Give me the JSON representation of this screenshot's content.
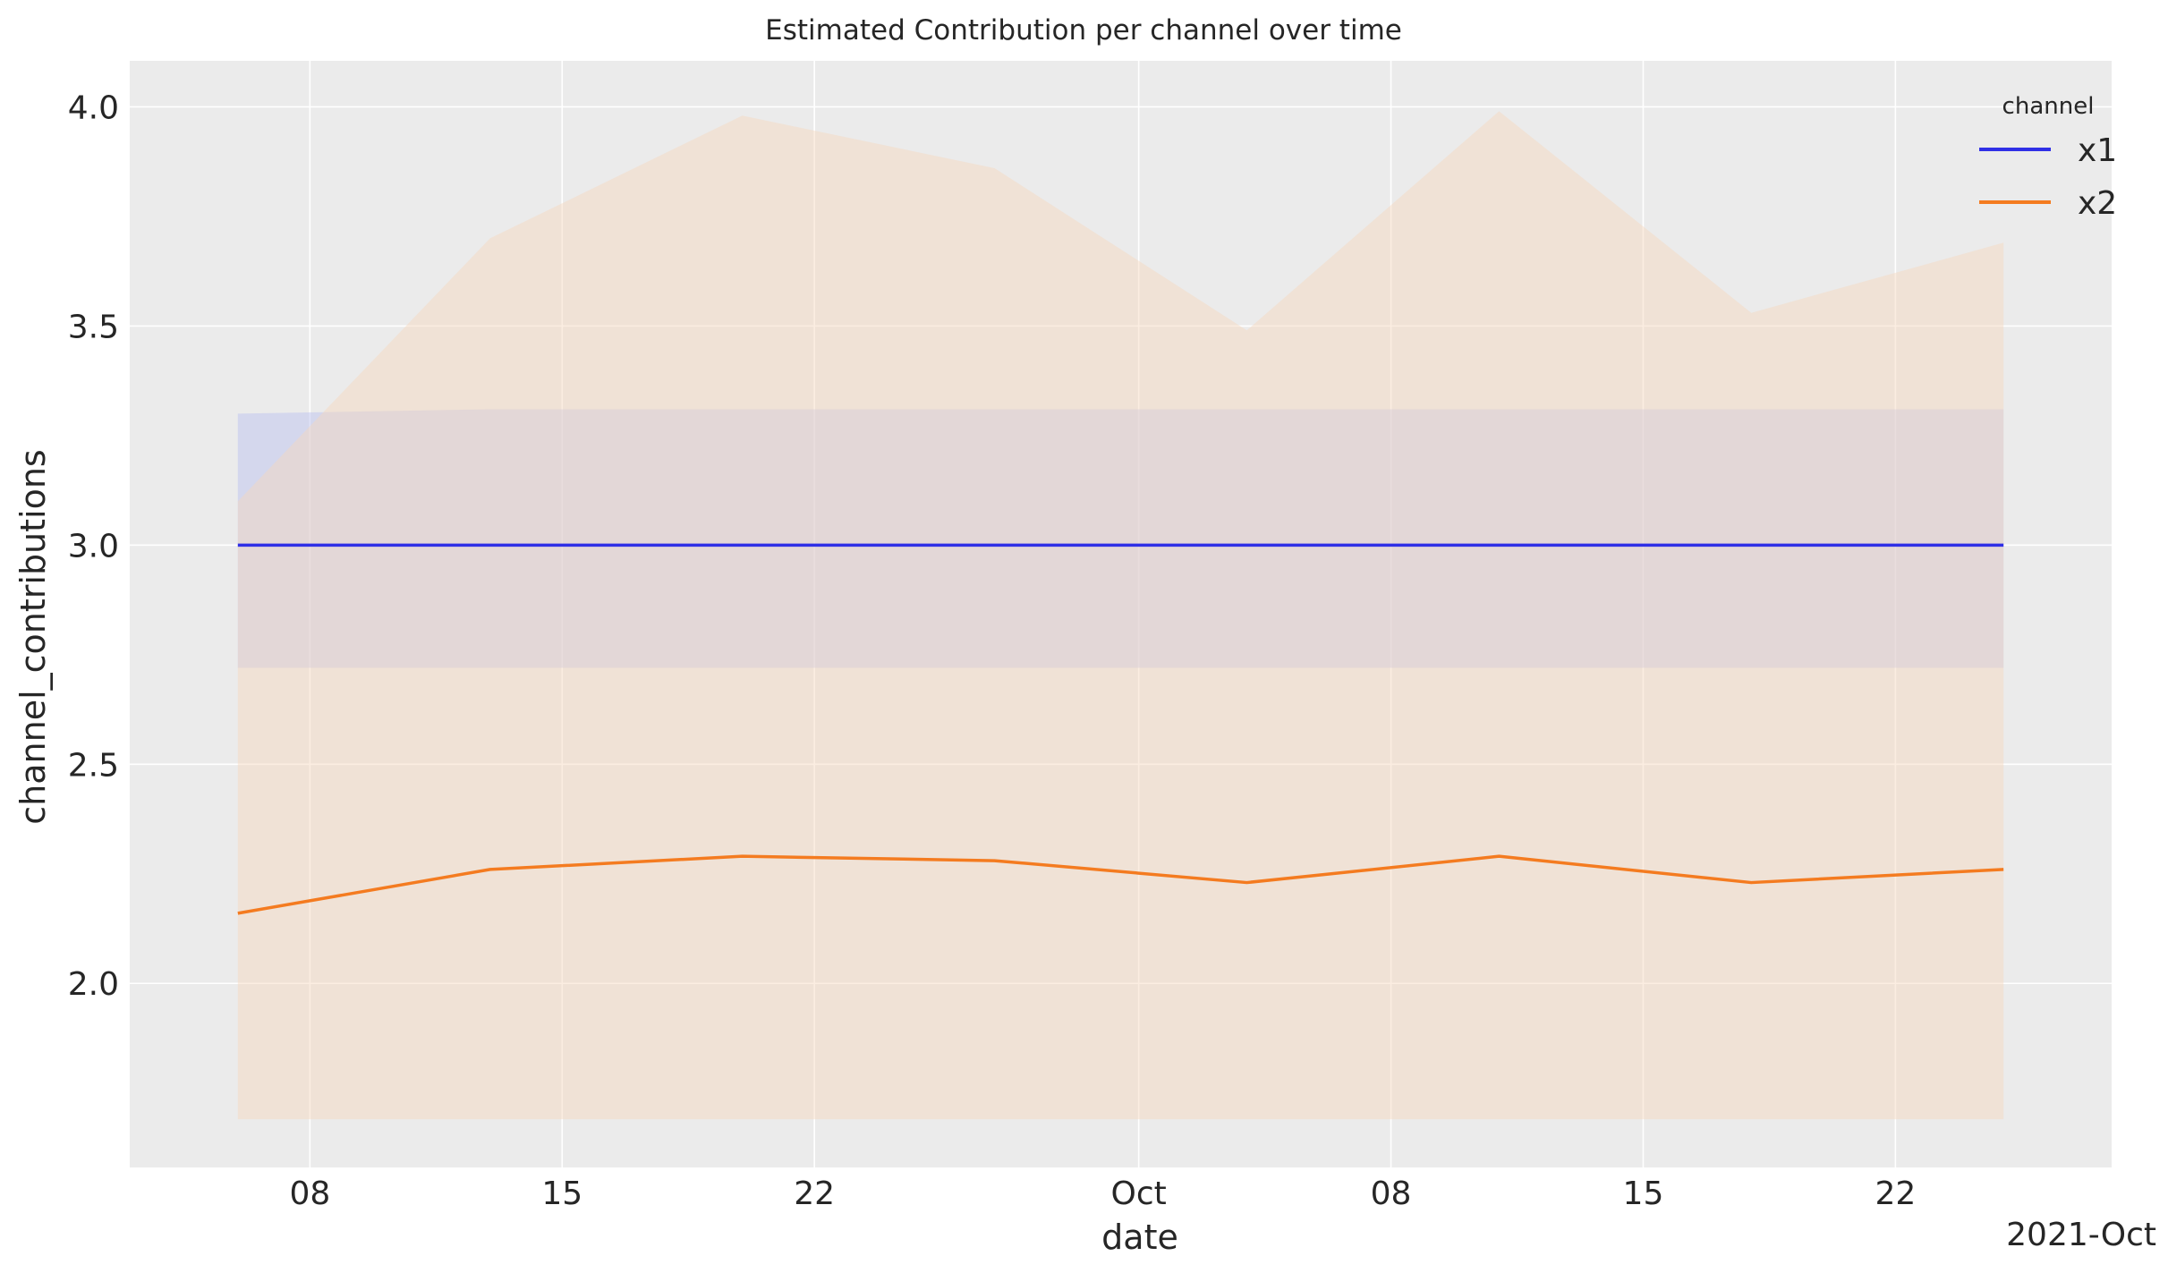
{
  "chart_data": {
    "type": "line",
    "title": "Estimated Contribution per channel over time",
    "xlabel": "date",
    "ylabel": "channel_contributions",
    "x_offset_label": "2021-Oct",
    "x_dates": [
      "2021-09-06",
      "2021-09-13",
      "2021-09-20",
      "2021-09-27",
      "2021-10-04",
      "2021-10-11",
      "2021-10-18",
      "2021-10-25"
    ],
    "x_ticks": [
      {
        "date": "2021-09-08",
        "label": "08"
      },
      {
        "date": "2021-09-15",
        "label": "15"
      },
      {
        "date": "2021-09-22",
        "label": "22"
      },
      {
        "date": "2021-10-01",
        "label": "Oct"
      },
      {
        "date": "2021-10-08",
        "label": "08"
      },
      {
        "date": "2021-10-15",
        "label": "15"
      },
      {
        "date": "2021-10-22",
        "label": "22"
      }
    ],
    "xlim": [
      "2021-09-03",
      "2021-10-28"
    ],
    "y_ticks": [
      {
        "value": 2.0,
        "label": "2.0"
      },
      {
        "value": 2.5,
        "label": "2.5"
      },
      {
        "value": 3.0,
        "label": "3.0"
      },
      {
        "value": 3.5,
        "label": "3.5"
      },
      {
        "value": 4.0,
        "label": "4.0"
      }
    ],
    "ylim": [
      1.58,
      4.105
    ],
    "grid": true,
    "legend": {
      "title": "channel",
      "placement": "top-right"
    },
    "series": [
      {
        "name": "x1",
        "color": "#2f2fe6",
        "band_color": "#b8bff0",
        "values": [
          3.0,
          3.0,
          3.0,
          3.0,
          3.0,
          3.0,
          3.0,
          3.0
        ],
        "lower": [
          2.72,
          2.72,
          2.72,
          2.72,
          2.72,
          2.72,
          2.72,
          2.72
        ],
        "upper": [
          3.3,
          3.31,
          3.31,
          3.31,
          3.31,
          3.31,
          3.31,
          3.31
        ]
      },
      {
        "name": "x2",
        "color": "#f47b20",
        "band_color": "#f6d6bd",
        "values": [
          2.16,
          2.26,
          2.29,
          2.28,
          2.23,
          2.29,
          2.23,
          2.26
        ],
        "lower": [
          1.69,
          1.69,
          1.69,
          1.69,
          1.69,
          1.69,
          1.69,
          1.69
        ],
        "upper": [
          3.1,
          3.7,
          3.98,
          3.86,
          3.49,
          3.99,
          3.53,
          3.69
        ]
      }
    ],
    "background_color": "#ebebeb"
  }
}
